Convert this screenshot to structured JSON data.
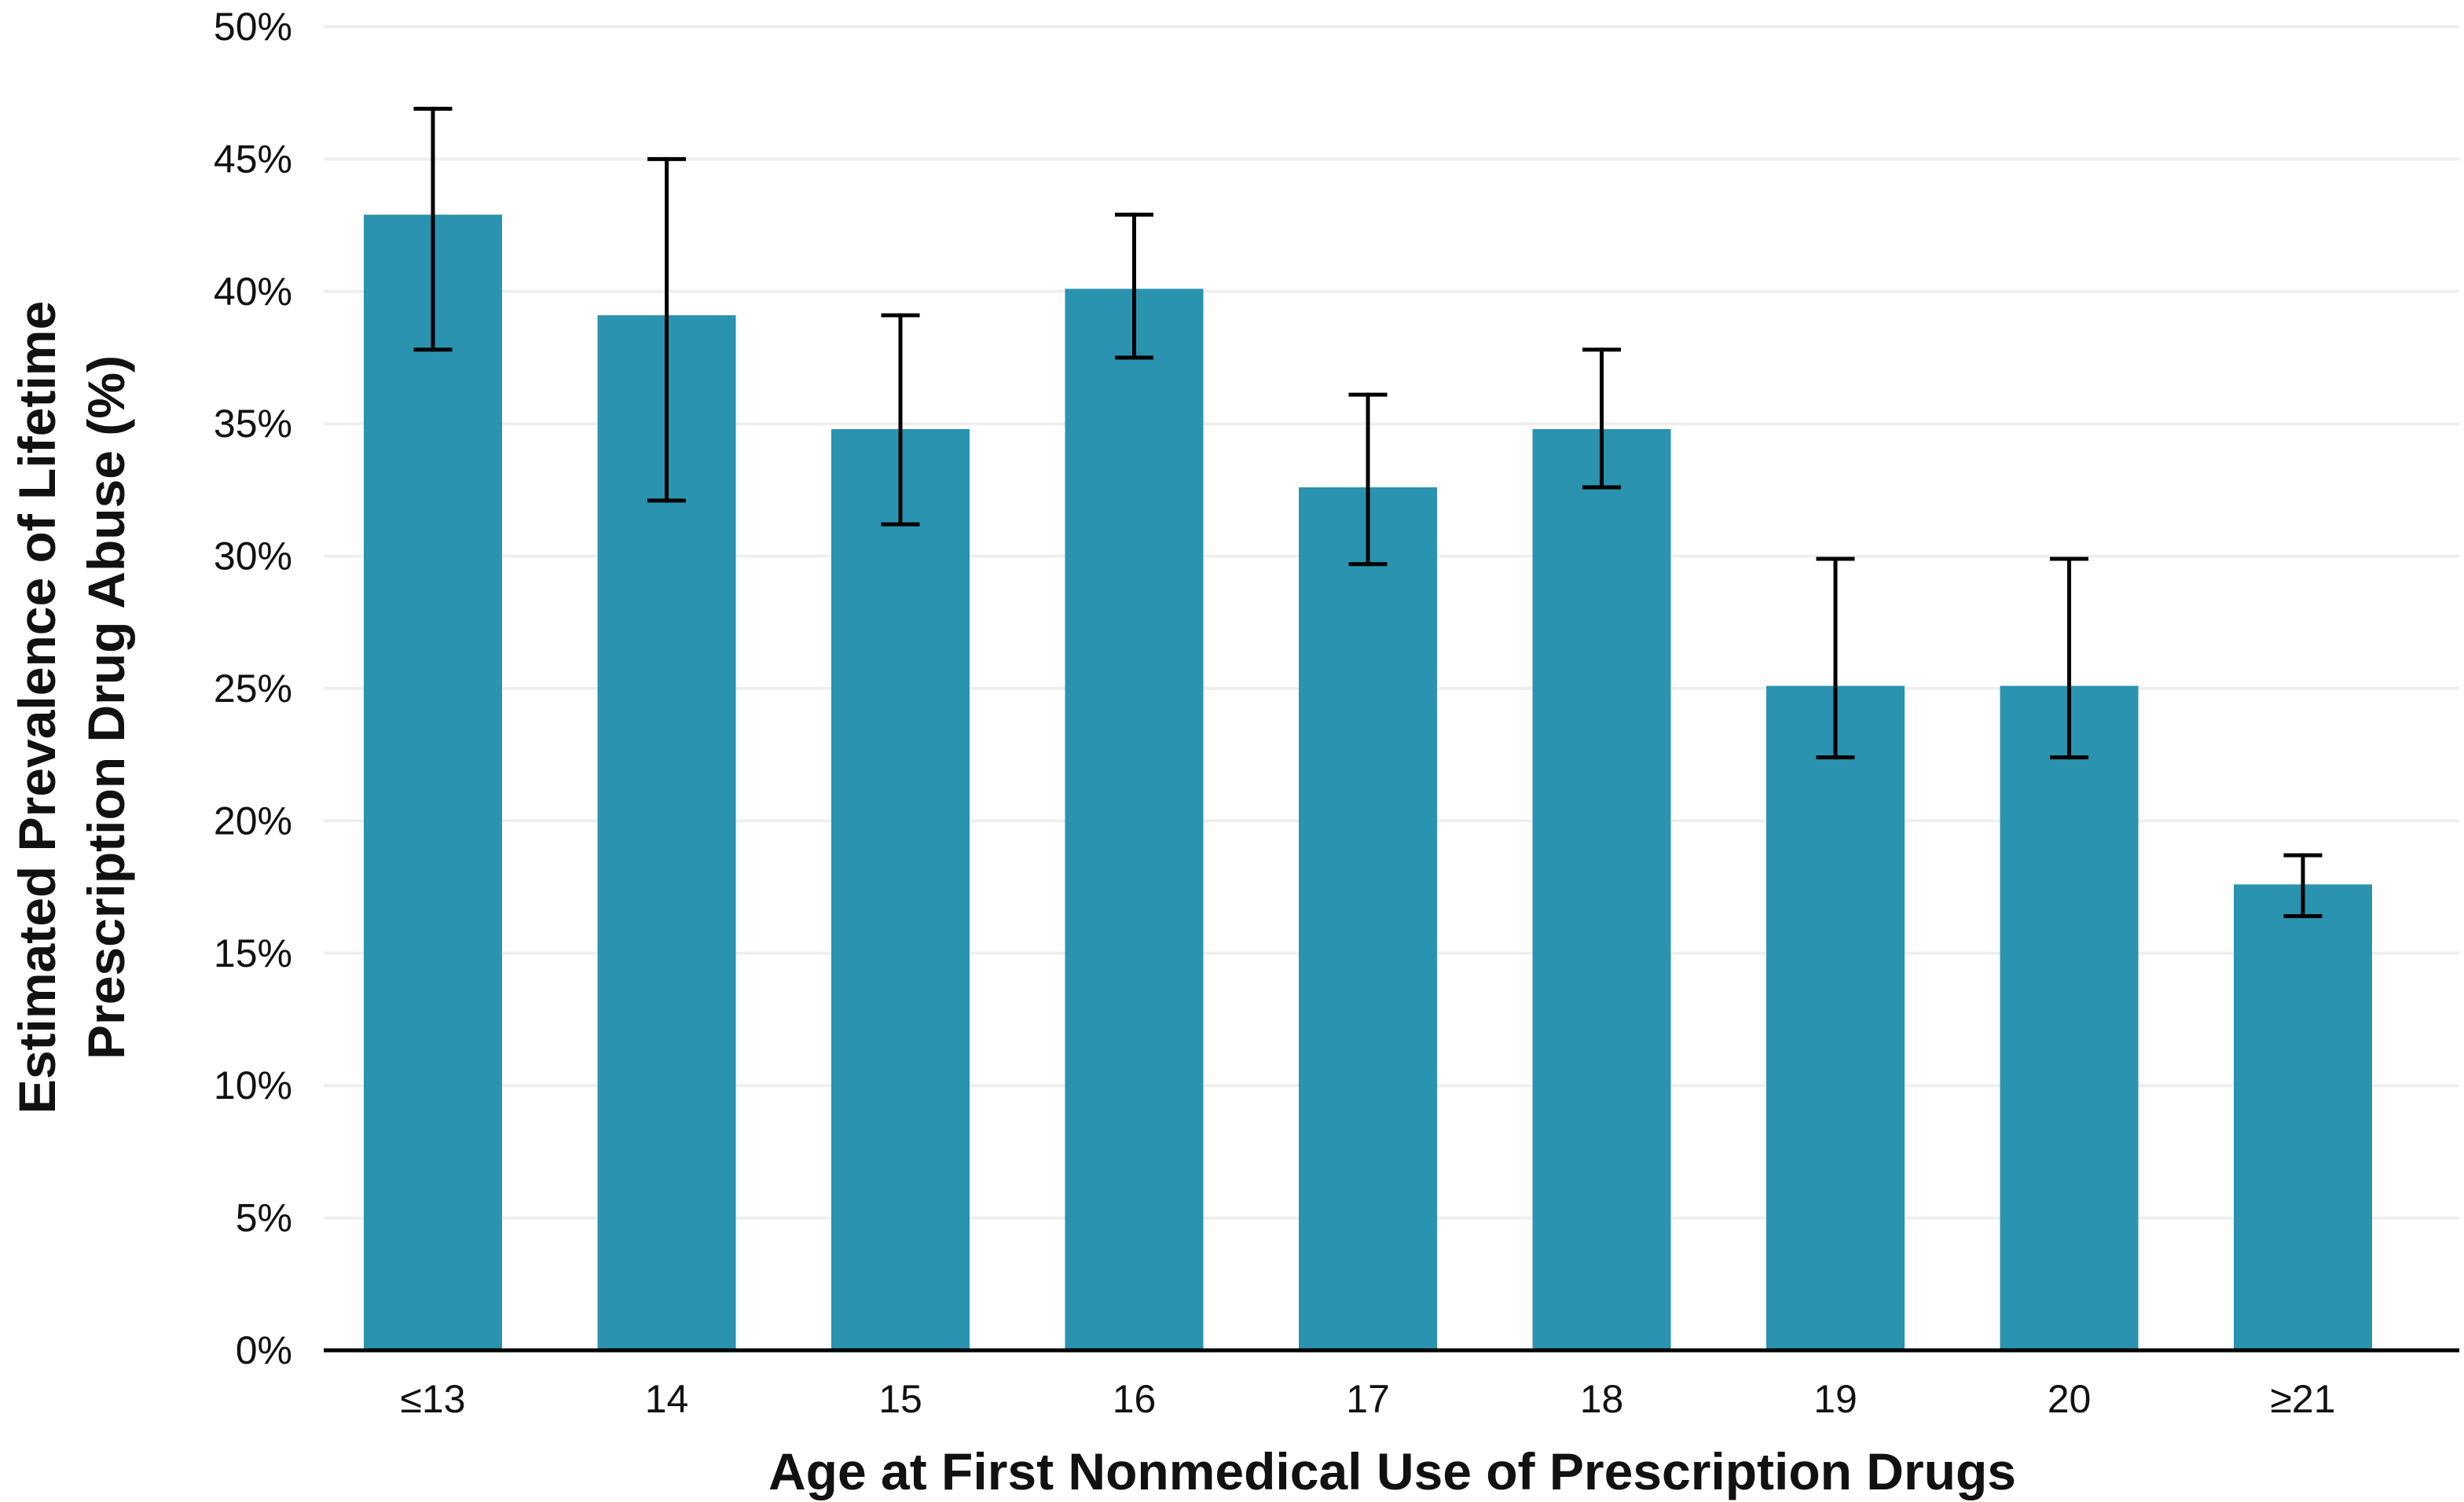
{
  "chart_data": {
    "type": "bar",
    "title": "",
    "xlabel": "Age at First Nonmedical Use of Prescription Drugs",
    "ylabel_lines": [
      "Estimated Prevalence of Lifetime",
      "Prescription Drug Abuse (%)"
    ],
    "categories": [
      "≤13",
      "14",
      "15",
      "16",
      "17",
      "18",
      "19",
      "20",
      "≥21"
    ],
    "series": [
      {
        "values": [
          42.9,
          39.1,
          34.8,
          40.1,
          32.6,
          34.8,
          25.1,
          25.1,
          17.6
        ],
        "error_low": [
          37.8,
          32.1,
          31.2,
          37.5,
          29.7,
          32.6,
          22.4,
          22.4,
          16.4
        ],
        "error_high": [
          46.9,
          45.0,
          39.1,
          42.9,
          36.1,
          37.8,
          29.9,
          29.9,
          18.7
        ]
      }
    ],
    "ylim": [
      0,
      50
    ],
    "yticks": [
      0,
      5,
      10,
      15,
      20,
      25,
      30,
      35,
      40,
      45,
      50
    ],
    "ytick_labels": [
      "0%",
      "5%",
      "10%",
      "15%",
      "20%",
      "25%",
      "30%",
      "35%",
      "40%",
      "45%",
      "50%"
    ],
    "grid": true,
    "legend": "none",
    "colors": {
      "bar": "#2a93b0",
      "error_bar": "#000000",
      "grid": "#efefef",
      "axis": "#000000",
      "text": "#111111"
    }
  }
}
